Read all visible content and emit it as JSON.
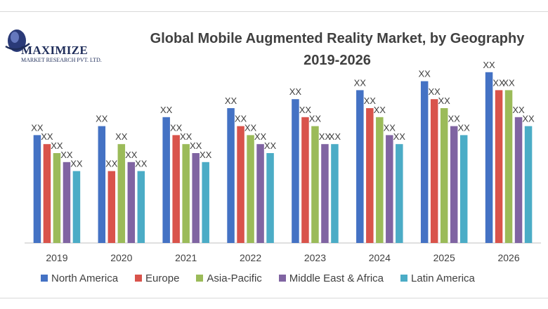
{
  "logo": {
    "name": "MAXIMIZE",
    "subtitle": "MARKET RESEARCH PVT. LTD."
  },
  "chart_data": {
    "type": "bar",
    "title": "Global Mobile Augmented Reality Market, by Geography",
    "subtitle": "2019-2026",
    "categories": [
      "2019",
      "2020",
      "2021",
      "2022",
      "2023",
      "2024",
      "2025",
      "2026"
    ],
    "value_label": "XX",
    "grid": false,
    "legend_position": "bottom",
    "ylim": [
      0,
      100
    ],
    "series": [
      {
        "name": "North America",
        "color": "#4472C4",
        "values": [
          60,
          65,
          70,
          75,
          80,
          85,
          90,
          95
        ]
      },
      {
        "name": "Europe",
        "color": "#D9534B",
        "values": [
          55,
          40,
          60,
          65,
          70,
          75,
          80,
          85
        ]
      },
      {
        "name": "Asia-Pacific",
        "color": "#9BBB59",
        "values": [
          50,
          55,
          55,
          60,
          65,
          70,
          75,
          85
        ]
      },
      {
        "name": "Middle East & Africa",
        "color": "#8064A2",
        "values": [
          45,
          45,
          50,
          55,
          55,
          60,
          65,
          70
        ]
      },
      {
        "name": "Latin America",
        "color": "#4BACC6",
        "values": [
          40,
          40,
          45,
          50,
          55,
          55,
          60,
          65
        ]
      }
    ]
  }
}
